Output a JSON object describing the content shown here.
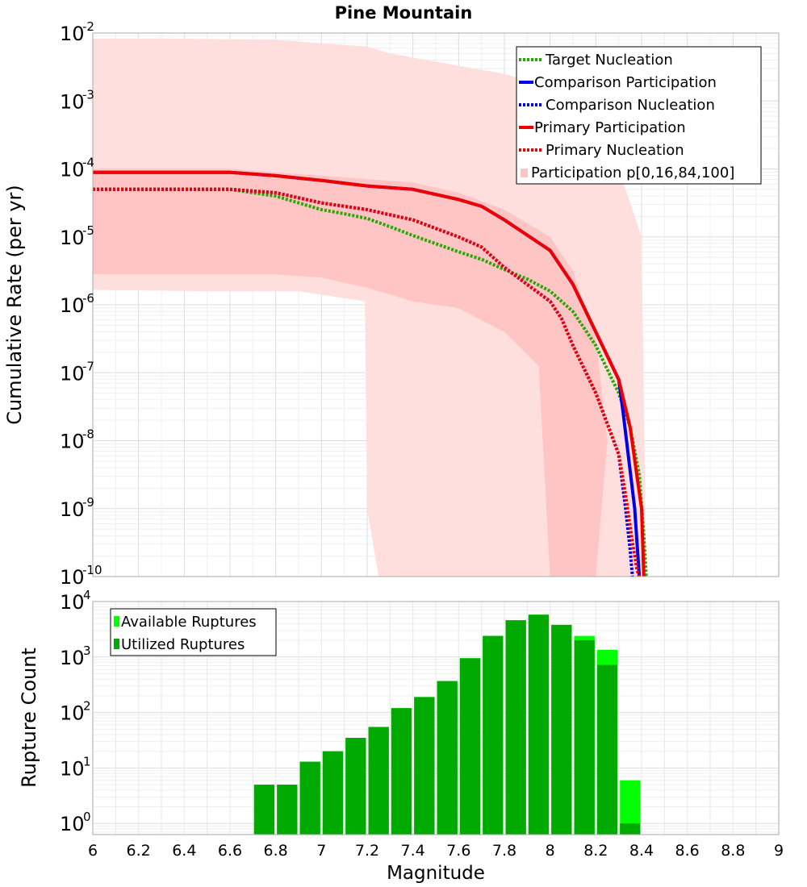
{
  "title": "Pine Mountain",
  "chart_data": [
    {
      "type": "line",
      "panel": "top",
      "title": "Pine Mountain",
      "xlabel": "",
      "ylabel": "Cumulative Rate (per yr)",
      "xlim": [
        6,
        9
      ],
      "ylim_log10": [
        -10,
        -2
      ],
      "yscale": "log",
      "grid": true,
      "legend_position": "top-right",
      "ytick_exponents": [
        "-2",
        "-3",
        "-4",
        "-5",
        "-6",
        "-7",
        "-8",
        "-9",
        "-10"
      ],
      "ytick_base": "10",
      "legend": [
        {
          "key": "target_nuc",
          "label": "Target Nucleation"
        },
        {
          "key": "comp_part",
          "label": "Comparison Participation"
        },
        {
          "key": "comp_nuc",
          "label": "Comparison Nucleation"
        },
        {
          "key": "prim_part",
          "label": "Primary Participation"
        },
        {
          "key": "prim_nuc",
          "label": "Primary Nucleation"
        },
        {
          "key": "band",
          "label": "Participation p[0,16,84,100]"
        }
      ],
      "series": [
        {
          "key": "target_nuc",
          "name": "Target Nucleation",
          "color": "#22aa00",
          "dash": true,
          "x": [
            6.0,
            6.2,
            6.4,
            6.6,
            6.8,
            7.0,
            7.1,
            7.2,
            7.3,
            7.4,
            7.5,
            7.6,
            7.7,
            7.8,
            7.9,
            8.0,
            8.1,
            8.2,
            8.3,
            8.35,
            8.39,
            8.41,
            8.42
          ],
          "log10y": [
            -4.3,
            -4.3,
            -4.3,
            -4.3,
            -4.4,
            -4.6,
            -4.66,
            -4.73,
            -4.85,
            -4.98,
            -5.1,
            -5.22,
            -5.33,
            -5.48,
            -5.62,
            -5.8,
            -6.1,
            -6.6,
            -7.3,
            -7.8,
            -8.5,
            -9.4,
            -10.0
          ]
        },
        {
          "key": "comp_part",
          "name": "Comparison Participation",
          "color": "#0000ee",
          "dash": false,
          "x": [
            6.0,
            6.6,
            6.8,
            7.0,
            7.2,
            7.4,
            7.6,
            7.7,
            7.8,
            8.0,
            8.1,
            8.2,
            8.3,
            8.32,
            8.37,
            8.39
          ],
          "log10y": [
            -4.05,
            -4.05,
            -4.1,
            -4.17,
            -4.25,
            -4.3,
            -4.45,
            -4.55,
            -4.75,
            -5.2,
            -5.7,
            -6.4,
            -7.1,
            -7.6,
            -9.0,
            -10.0
          ]
        },
        {
          "key": "comp_nuc",
          "name": "Comparison Nucleation",
          "color": "#0000ee",
          "dash": true,
          "x": [
            6.0,
            6.6,
            6.8,
            7.0,
            7.2,
            7.4,
            7.6,
            7.7,
            7.8,
            8.0,
            8.05,
            8.1,
            8.2,
            8.3,
            8.33,
            8.35,
            8.36
          ],
          "log10y": [
            -4.3,
            -4.3,
            -4.35,
            -4.5,
            -4.6,
            -4.75,
            -5.0,
            -5.15,
            -5.45,
            -5.95,
            -6.2,
            -6.6,
            -7.3,
            -8.2,
            -9.0,
            -9.6,
            -10.0
          ]
        },
        {
          "key": "prim_part",
          "name": "Primary Participation",
          "color": "#ee0000",
          "dash": false,
          "x": [
            6.0,
            6.6,
            6.8,
            7.0,
            7.2,
            7.4,
            7.6,
            7.7,
            7.8,
            8.0,
            8.1,
            8.2,
            8.3,
            8.35,
            8.4,
            8.41
          ],
          "log10y": [
            -4.05,
            -4.05,
            -4.1,
            -4.17,
            -4.25,
            -4.3,
            -4.45,
            -4.55,
            -4.75,
            -5.2,
            -5.7,
            -6.4,
            -7.1,
            -7.8,
            -9.0,
            -10.0
          ]
        },
        {
          "key": "prim_nuc",
          "name": "Primary Nucleation",
          "color": "#ee0000",
          "dash": true,
          "x": [
            6.0,
            6.6,
            6.8,
            7.0,
            7.2,
            7.4,
            7.6,
            7.7,
            7.8,
            8.0,
            8.05,
            8.1,
            8.2,
            8.3,
            8.33,
            8.36,
            8.38,
            8.39
          ],
          "log10y": [
            -4.3,
            -4.3,
            -4.35,
            -4.5,
            -4.6,
            -4.75,
            -5.0,
            -5.15,
            -5.45,
            -5.95,
            -6.2,
            -6.6,
            -7.3,
            -8.2,
            -8.8,
            -9.5,
            -9.9,
            -10.0
          ]
        }
      ],
      "band_outer": {
        "name": "Participation p[0,100]",
        "color": "#ffdede",
        "x": [
          6.0,
          6.3,
          6.8,
          7.2,
          7.3,
          7.8,
          8.0,
          8.1,
          8.2,
          8.3,
          8.4,
          8.42,
          8.4,
          8.2,
          8.1,
          8.0,
          7.8,
          7.6,
          7.4,
          7.3,
          7.25,
          7.2,
          7.19,
          6.9,
          6.5,
          6.0
        ],
        "log10y": [
          -2.08,
          -2.08,
          -2.1,
          -2.2,
          -2.3,
          -2.6,
          -2.8,
          -3.0,
          -3.5,
          -4.0,
          -5.0,
          -10.0,
          -10.0,
          -10.0,
          -10.0,
          -10.0,
          -10.0,
          -10.0,
          -10.0,
          -10.0,
          -10.0,
          -9.0,
          -5.95,
          -5.8,
          -5.8,
          -5.78
        ]
      },
      "band_inner": {
        "name": "Participation p[16,84]",
        "color": "#ffc4c4",
        "x": [
          6.0,
          6.6,
          7.0,
          7.4,
          7.6,
          7.8,
          8.0,
          8.1,
          8.2,
          8.25,
          8.2,
          8.1,
          8.0,
          7.95,
          7.8,
          7.6,
          7.4,
          7.2,
          7.0,
          6.8,
          6.0
        ],
        "log10y": [
          -4.0,
          -4.0,
          -4.1,
          -4.2,
          -4.35,
          -4.6,
          -5.0,
          -5.5,
          -6.5,
          -8.0,
          -10.0,
          -10.0,
          -10.0,
          -6.9,
          -6.4,
          -6.05,
          -5.95,
          -5.75,
          -5.6,
          -5.55,
          -5.55
        ]
      }
    },
    {
      "type": "bar",
      "panel": "bottom",
      "xlabel": "Magnitude",
      "ylabel": "Rupture Count",
      "xlim": [
        6,
        9
      ],
      "ylim_log10": [
        -0.2,
        4
      ],
      "yscale": "log",
      "grid": true,
      "legend_position": "top-left",
      "xtick_labels": [
        "6",
        "6.2",
        "6.4",
        "6.6",
        "6.8",
        "7",
        "7.2",
        "7.4",
        "7.6",
        "7.8",
        "8",
        "8.2",
        "8.4",
        "8.6",
        "8.8",
        "9"
      ],
      "ytick_exponents": [
        "0",
        "1",
        "2",
        "3",
        "4"
      ],
      "ytick_base": "10",
      "legend": [
        {
          "key": "available",
          "label": "Available Ruptures",
          "color": "#00ff00"
        },
        {
          "key": "utilized",
          "label": "Utilized Ruptures",
          "color": "#00aa00"
        }
      ],
      "bin_width": 0.1,
      "bins": [
        6.75,
        6.85,
        6.95,
        7.05,
        7.15,
        7.25,
        7.35,
        7.45,
        7.55,
        7.65,
        7.75,
        7.85,
        7.95,
        8.05,
        8.15,
        8.25,
        8.35
      ],
      "series": [
        {
          "name": "Available Ruptures",
          "color": "#00ff00",
          "values": [
            5,
            5,
            13,
            20,
            35,
            55,
            120,
            190,
            370,
            950,
            2400,
            4600,
            5800,
            3800,
            2400,
            1350,
            6
          ]
        },
        {
          "name": "Utilized Ruptures",
          "color": "#00aa00",
          "values": [
            5,
            5,
            13,
            20,
            35,
            55,
            120,
            190,
            370,
            950,
            2400,
            4600,
            5800,
            3800,
            2000,
            720,
            1
          ]
        }
      ]
    }
  ]
}
